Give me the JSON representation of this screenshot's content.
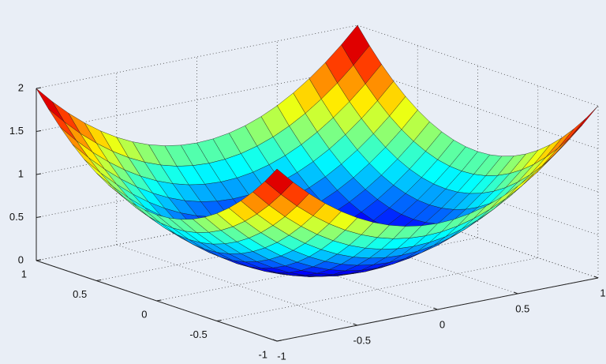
{
  "chart_data": {
    "type": "surface",
    "colormap": "jet",
    "grid": true,
    "x": [
      -1,
      -0.9,
      -0.8,
      -0.7,
      -0.6,
      -0.5,
      -0.4,
      -0.3,
      -0.2,
      -0.1,
      0,
      0.1,
      0.2,
      0.3,
      0.4,
      0.5,
      0.6,
      0.7,
      0.8,
      0.9,
      1
    ],
    "y": [
      -1,
      -0.9,
      -0.8,
      -0.7,
      -0.6,
      -0.5,
      -0.4,
      -0.3,
      -0.2,
      -0.1,
      0,
      0.1,
      0.2,
      0.3,
      0.4,
      0.5,
      0.6,
      0.7,
      0.8,
      0.9,
      1
    ],
    "z": [
      [
        2,
        1.81,
        1.64,
        1.49,
        1.36,
        1.25,
        1.16,
        1.09,
        1.04,
        1.01,
        1,
        1.01,
        1.04,
        1.09,
        1.16,
        1.25,
        1.36,
        1.49,
        1.64,
        1.81,
        2
      ],
      [
        1.81,
        1.62,
        1.45,
        1.3,
        1.17,
        1.06,
        0.97,
        0.9,
        0.85,
        0.82,
        0.81,
        0.82,
        0.85,
        0.9,
        0.97,
        1.06,
        1.17,
        1.3,
        1.45,
        1.62,
        1.81
      ],
      [
        1.64,
        1.45,
        1.28,
        1.13,
        1,
        0.89,
        0.8,
        0.73,
        0.68,
        0.65,
        0.64,
        0.65,
        0.68,
        0.73,
        0.8,
        0.89,
        1,
        1.13,
        1.28,
        1.45,
        1.64
      ],
      [
        1.49,
        1.3,
        1.13,
        0.98,
        0.85,
        0.74,
        0.65,
        0.58,
        0.53,
        0.5,
        0.49,
        0.5,
        0.53,
        0.58,
        0.65,
        0.74,
        0.85,
        0.98,
        1.13,
        1.3,
        1.49
      ],
      [
        1.36,
        1.17,
        1,
        0.85,
        0.72,
        0.61,
        0.52,
        0.45,
        0.4,
        0.37,
        0.36,
        0.37,
        0.4,
        0.45,
        0.52,
        0.61,
        0.72,
        0.85,
        1,
        1.17,
        1.36
      ],
      [
        1.25,
        1.06,
        0.89,
        0.74,
        0.61,
        0.5,
        0.41,
        0.34,
        0.29,
        0.26,
        0.25,
        0.26,
        0.29,
        0.34,
        0.41,
        0.5,
        0.61,
        0.74,
        0.89,
        1.06,
        1.25
      ],
      [
        1.16,
        0.97,
        0.8,
        0.65,
        0.52,
        0.41,
        0.32,
        0.25,
        0.2,
        0.17,
        0.16,
        0.17,
        0.2,
        0.25,
        0.32,
        0.41,
        0.52,
        0.65,
        0.8,
        0.97,
        1.16
      ],
      [
        1.09,
        0.9,
        0.73,
        0.58,
        0.45,
        0.34,
        0.25,
        0.18,
        0.13,
        0.1,
        0.09,
        0.1,
        0.13,
        0.18,
        0.25,
        0.34,
        0.45,
        0.58,
        0.73,
        0.9,
        1.09
      ],
      [
        1.04,
        0.85,
        0.68,
        0.53,
        0.4,
        0.29,
        0.2,
        0.13,
        0.08,
        0.05,
        0.04,
        0.05,
        0.08,
        0.13,
        0.2,
        0.29,
        0.4,
        0.53,
        0.68,
        0.85,
        1.04
      ],
      [
        1.01,
        0.82,
        0.65,
        0.5,
        0.37,
        0.26,
        0.17,
        0.1,
        0.05,
        0.02,
        0.01,
        0.02,
        0.05,
        0.1,
        0.17,
        0.26,
        0.37,
        0.5,
        0.65,
        0.82,
        1.01
      ],
      [
        1,
        0.81,
        0.64,
        0.49,
        0.36,
        0.25,
        0.16,
        0.09,
        0.04,
        0.01,
        0,
        0.01,
        0.04,
        0.09,
        0.16,
        0.25,
        0.36,
        0.49,
        0.64,
        0.81,
        1
      ],
      [
        1.01,
        0.82,
        0.65,
        0.5,
        0.37,
        0.26,
        0.17,
        0.1,
        0.05,
        0.02,
        0.01,
        0.02,
        0.05,
        0.1,
        0.17,
        0.26,
        0.37,
        0.5,
        0.65,
        0.82,
        1.01
      ],
      [
        1.04,
        0.85,
        0.68,
        0.53,
        0.4,
        0.29,
        0.2,
        0.13,
        0.08,
        0.05,
        0.04,
        0.05,
        0.08,
        0.13,
        0.2,
        0.29,
        0.4,
        0.53,
        0.68,
        0.85,
        1.04
      ],
      [
        1.09,
        0.9,
        0.73,
        0.58,
        0.45,
        0.34,
        0.25,
        0.18,
        0.13,
        0.1,
        0.09,
        0.1,
        0.13,
        0.18,
        0.25,
        0.34,
        0.45,
        0.58,
        0.73,
        0.9,
        1.09
      ],
      [
        1.16,
        0.97,
        0.8,
        0.65,
        0.52,
        0.41,
        0.32,
        0.25,
        0.2,
        0.17,
        0.16,
        0.17,
        0.2,
        0.25,
        0.32,
        0.41,
        0.52,
        0.65,
        0.8,
        0.97,
        1.16
      ],
      [
        1.25,
        1.06,
        0.89,
        0.74,
        0.61,
        0.5,
        0.41,
        0.34,
        0.29,
        0.26,
        0.25,
        0.26,
        0.29,
        0.34,
        0.41,
        0.5,
        0.61,
        0.74,
        0.89,
        1.06,
        1.25
      ],
      [
        1.36,
        1.17,
        1,
        0.85,
        0.72,
        0.61,
        0.52,
        0.45,
        0.4,
        0.37,
        0.36,
        0.37,
        0.4,
        0.45,
        0.52,
        0.61,
        0.72,
        0.85,
        1,
        1.17,
        1.36
      ],
      [
        1.49,
        1.3,
        1.13,
        0.98,
        0.85,
        0.74,
        0.65,
        0.58,
        0.53,
        0.5,
        0.49,
        0.5,
        0.53,
        0.58,
        0.65,
        0.74,
        0.85,
        0.98,
        1.13,
        1.3,
        1.49
      ],
      [
        1.64,
        1.45,
        1.28,
        1.13,
        1,
        0.89,
        0.8,
        0.73,
        0.68,
        0.65,
        0.64,
        0.65,
        0.68,
        0.73,
        0.8,
        0.89,
        1,
        1.13,
        1.28,
        1.45,
        1.64
      ],
      [
        1.81,
        1.62,
        1.45,
        1.3,
        1.17,
        1.06,
        0.97,
        0.9,
        0.85,
        0.82,
        0.81,
        0.82,
        0.85,
        0.9,
        0.97,
        1.06,
        1.17,
        1.3,
        1.45,
        1.62,
        1.81
      ],
      [
        2,
        1.81,
        1.64,
        1.49,
        1.36,
        1.25,
        1.16,
        1.09,
        1.04,
        1.01,
        1,
        1.01,
        1.04,
        1.09,
        1.16,
        1.25,
        1.36,
        1.49,
        1.64,
        1.81,
        2
      ]
    ],
    "xlim": [
      -1,
      1
    ],
    "ylim": [
      -1,
      1
    ],
    "zlim": [
      0,
      2
    ],
    "xticks": [
      -1,
      -0.5,
      0,
      0.5,
      1
    ],
    "yticks": [
      -1,
      -0.5,
      0,
      0.5,
      1
    ],
    "zticks": [
      0,
      0.5,
      1,
      1.5,
      2
    ]
  }
}
